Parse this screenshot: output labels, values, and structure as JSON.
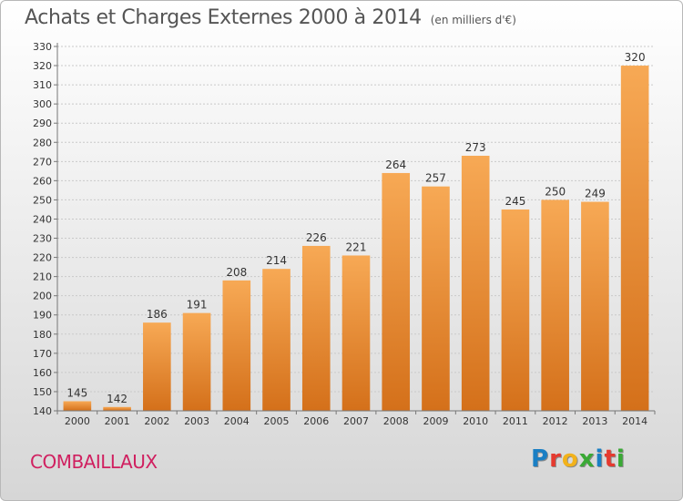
{
  "chart_data": {
    "type": "bar",
    "title": "Achats et Charges Externes 2000 à 2014",
    "subtitle": "(en milliers d'€)",
    "categories": [
      "2000",
      "2001",
      "2002",
      "2003",
      "2004",
      "2005",
      "2006",
      "2007",
      "2008",
      "2009",
      "2010",
      "2011",
      "2012",
      "2013",
      "2014"
    ],
    "values": [
      145,
      142,
      186,
      191,
      208,
      214,
      226,
      221,
      264,
      257,
      273,
      245,
      250,
      249,
      320
    ],
    "ylim": [
      140,
      330
    ],
    "yticks": [
      140,
      150,
      160,
      170,
      180,
      190,
      200,
      210,
      220,
      230,
      240,
      250,
      260,
      270,
      280,
      290,
      300,
      310,
      320,
      330
    ],
    "grid": true,
    "bar_color": "#f39c3c",
    "bar_color_dark": "#d4701a"
  },
  "footer": {
    "place": "COMBAILLAUX",
    "brand_letters": [
      {
        "char": "P",
        "color": "#1a7fc4"
      },
      {
        "char": "r",
        "color": "#e53a2f"
      },
      {
        "char": "o",
        "color": "#f2b21b"
      },
      {
        "char": "x",
        "color": "#3aa935"
      },
      {
        "char": "i",
        "color": "#1a7fc4"
      },
      {
        "char": "t",
        "color": "#e53a2f"
      },
      {
        "char": "i",
        "color": "#3aa935"
      }
    ]
  }
}
